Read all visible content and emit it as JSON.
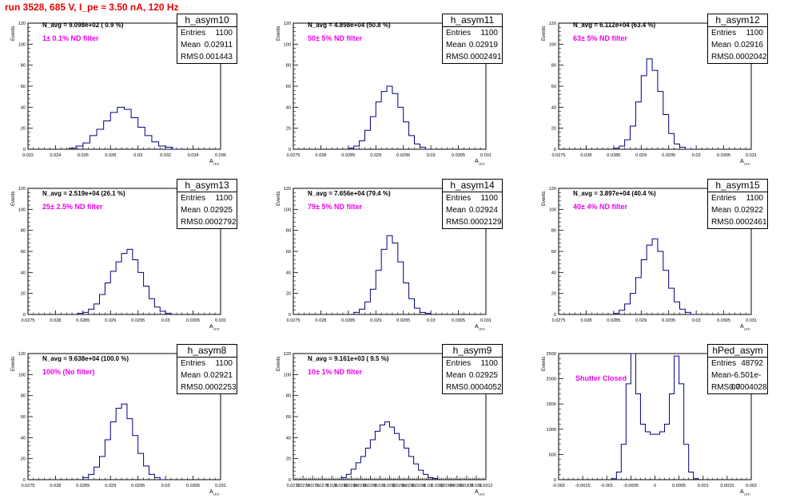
{
  "header": {
    "run_title": "run 3528,   685 V, I_pe ≈ 3.50 nA, 120 Hz"
  },
  "chart_data": [
    {
      "type": "histogram",
      "name": "h_asym10",
      "stats": {
        "entries": "1100",
        "mean": "0.02911",
        "rms": "0.001443"
      },
      "n_avg_label": "N_avg = 9.098e+02 ( 0.9 %)",
      "filter_label": "1± 0.1% ND filter",
      "xlim": [
        0.022,
        0.036
      ],
      "ylim": [
        0,
        120
      ],
      "xticks": [
        0.022,
        0.024,
        0.026,
        0.028,
        0.03,
        0.032,
        0.034,
        0.036
      ],
      "xtick_labels": [
        "0.022",
        "0.024",
        "0.026",
        "0.028",
        "0.03",
        "0.032",
        "0.034",
        "0.036"
      ],
      "yticks": [
        0,
        20,
        40,
        60,
        80,
        100,
        120
      ],
      "ylabel": "Events",
      "xlabel": "A",
      "xlabel_sub": "LED",
      "bins": {
        "edges": [
          0.025,
          0.0255,
          0.026,
          0.0265,
          0.027,
          0.0275,
          0.028,
          0.0285,
          0.029,
          0.0295,
          0.03,
          0.0305,
          0.031,
          0.0315,
          0.032,
          0.0325,
          0.033
        ],
        "counts": [
          1,
          3,
          6,
          13,
          19,
          27,
          35,
          40,
          38,
          30,
          21,
          13,
          7,
          3,
          2,
          0
        ]
      }
    },
    {
      "type": "histogram",
      "name": "h_asym11",
      "stats": {
        "entries": "1100",
        "mean": "0.02919",
        "rms": "0.0002491"
      },
      "n_avg_label": "N_avg = 4.898e+04 (50.8 %)",
      "filter_label": "50± 5% ND filter",
      "xlim": [
        0.0275,
        0.031
      ],
      "ylim": [
        0,
        120
      ],
      "xticks": [
        0.0275,
        0.028,
        0.0285,
        0.029,
        0.0295,
        0.03,
        0.0305,
        0.031
      ],
      "xtick_labels": [
        "0.0275",
        "0.028",
        "0.0285",
        "0.029",
        "0.0295",
        "0.03",
        "0.0305",
        "0.031"
      ],
      "yticks": [
        0,
        20,
        40,
        60,
        80,
        100,
        120
      ],
      "ylabel": "Events",
      "xlabel": "A",
      "xlabel_sub": "LED",
      "bins": {
        "edges": [
          0.0285,
          0.0286,
          0.0287,
          0.0288,
          0.0289,
          0.029,
          0.0291,
          0.0292,
          0.0293,
          0.0294,
          0.0295,
          0.0296,
          0.0297,
          0.0298,
          0.0299,
          0.03
        ],
        "counts": [
          1,
          3,
          8,
          18,
          31,
          45,
          55,
          60,
          53,
          40,
          26,
          13,
          5,
          2,
          0
        ]
      }
    },
    {
      "type": "histogram",
      "name": "h_asym12",
      "stats": {
        "entries": "1100",
        "mean": "0.02916",
        "rms": "0.0002042"
      },
      "n_avg_label": "N_avg = 6.112e+04 (63.4 %)",
      "filter_label": "63± 5% ND filter",
      "xlim": [
        0.0275,
        0.031
      ],
      "ylim": [
        0,
        120
      ],
      "xticks": [
        0.0275,
        0.028,
        0.0285,
        0.029,
        0.0295,
        0.03,
        0.0305,
        0.031
      ],
      "xtick_labels": [
        "0.0275",
        "0.028",
        "0.0285",
        "0.029",
        "0.0295",
        "0.03",
        "0.0305",
        "0.031"
      ],
      "yticks": [
        0,
        20,
        40,
        60,
        80,
        100,
        120
      ],
      "ylabel": "Events",
      "xlabel": "A",
      "xlabel_sub": "LED",
      "bins": {
        "edges": [
          0.0285,
          0.0286,
          0.0287,
          0.0288,
          0.0289,
          0.029,
          0.0291,
          0.0292,
          0.0293,
          0.0294,
          0.0295,
          0.0296,
          0.0297,
          0.0298,
          0.0299
        ],
        "counts": [
          1,
          3,
          9,
          22,
          45,
          70,
          86,
          75,
          55,
          33,
          15,
          5,
          2,
          0
        ]
      }
    },
    {
      "type": "histogram",
      "name": "h_asym13",
      "stats": {
        "entries": "1100",
        "mean": "0.02925",
        "rms": "0.0002792"
      },
      "n_avg_label": "N_avg = 2.519e+04 (26.1 %)",
      "filter_label": "25± 2.5% ND filter",
      "xlim": [
        0.0275,
        0.031
      ],
      "ylim": [
        0,
        120
      ],
      "xticks": [
        0.0275,
        0.028,
        0.0285,
        0.029,
        0.0295,
        0.03,
        0.0305,
        0.031
      ],
      "xtick_labels": [
        "0.0275",
        "0.028",
        "0.0285",
        "0.029",
        "0.0295",
        "0.03",
        "0.0305",
        "0.031"
      ],
      "yticks": [
        0,
        20,
        40,
        60,
        80,
        100,
        120
      ],
      "ylabel": "Events",
      "xlabel": "A",
      "xlabel_sub": "LED",
      "bins": {
        "edges": [
          0.0284,
          0.0285,
          0.0286,
          0.0287,
          0.0288,
          0.0289,
          0.029,
          0.0291,
          0.0292,
          0.0293,
          0.0294,
          0.0295,
          0.0296,
          0.0297,
          0.0298,
          0.0299,
          0.03,
          0.0301
        ],
        "counts": [
          1,
          2,
          5,
          10,
          19,
          30,
          41,
          50,
          58,
          62,
          52,
          40,
          27,
          15,
          7,
          3,
          1
        ]
      }
    },
    {
      "type": "histogram",
      "name": "h_asym14",
      "stats": {
        "entries": "1100",
        "mean": "0.02924",
        "rms": "0.0002129"
      },
      "n_avg_label": "N_avg = 7.656e+04 (79.4 %)",
      "filter_label": "79± 5% ND filter",
      "xlim": [
        0.0275,
        0.031
      ],
      "ylim": [
        0,
        120
      ],
      "xticks": [
        0.0275,
        0.028,
        0.0285,
        0.029,
        0.0295,
        0.03,
        0.0305,
        0.031
      ],
      "xtick_labels": [
        "0.0275",
        "0.028",
        "0.0285",
        "0.029",
        "0.0295",
        "0.03",
        "0.0305",
        "0.031"
      ],
      "yticks": [
        0,
        20,
        40,
        60,
        80,
        100,
        120
      ],
      "ylabel": "Events",
      "xlabel": "A",
      "xlabel_sub": "LED",
      "bins": {
        "edges": [
          0.0286,
          0.0287,
          0.0288,
          0.0289,
          0.029,
          0.0291,
          0.0292,
          0.0293,
          0.0294,
          0.0295,
          0.0296,
          0.0297,
          0.0298,
          0.0299,
          0.03
        ],
        "counts": [
          2,
          5,
          12,
          24,
          42,
          62,
          75,
          68,
          50,
          30,
          15,
          6,
          2,
          1
        ]
      }
    },
    {
      "type": "histogram",
      "name": "h_asym15",
      "stats": {
        "entries": "1100",
        "mean": "0.02922",
        "rms": "0.0002461"
      },
      "n_avg_label": "N_avg = 3.897e+04 (40.4 %)",
      "filter_label": "40± 4% ND filter",
      "xlim": [
        0.0275,
        0.031
      ],
      "ylim": [
        0,
        120
      ],
      "xticks": [
        0.0275,
        0.028,
        0.0285,
        0.029,
        0.0295,
        0.03,
        0.0305,
        0.031
      ],
      "xtick_labels": [
        "0.0275",
        "0.028",
        "0.0285",
        "0.029",
        "0.0295",
        "0.03",
        "0.0305",
        "0.031"
      ],
      "yticks": [
        0,
        20,
        40,
        60,
        80,
        100,
        120
      ],
      "ylabel": "Events",
      "xlabel": "A",
      "xlabel_sub": "LED",
      "bins": {
        "edges": [
          0.0285,
          0.0286,
          0.0287,
          0.0288,
          0.0289,
          0.029,
          0.0291,
          0.0292,
          0.0293,
          0.0294,
          0.0295,
          0.0296,
          0.0297,
          0.0298,
          0.0299,
          0.03
        ],
        "counts": [
          1,
          4,
          10,
          20,
          35,
          52,
          66,
          72,
          60,
          42,
          25,
          12,
          5,
          2,
          0
        ]
      }
    },
    {
      "type": "histogram",
      "name": "h_asym8",
      "stats": {
        "entries": "1100",
        "mean": "0.02921",
        "rms": "0.0002253"
      },
      "n_avg_label": "N_avg = 9.638e+04 (100.0 %)",
      "filter_label": "100% (No filter)",
      "xlim": [
        0.0275,
        0.031
      ],
      "ylim": [
        0,
        120
      ],
      "xticks": [
        0.0275,
        0.028,
        0.0285,
        0.029,
        0.0295,
        0.03,
        0.0305,
        0.031
      ],
      "xtick_labels": [
        "0.0275",
        "0.028",
        "0.0285",
        "0.029",
        "0.0295",
        "0.03",
        "0.0305",
        "0.031"
      ],
      "yticks": [
        0,
        20,
        40,
        60,
        80,
        100,
        120
      ],
      "ylabel": "Events",
      "xlabel": "A",
      "xlabel_sub": "LED",
      "bins": {
        "edges": [
          0.0285,
          0.0286,
          0.0287,
          0.0288,
          0.0289,
          0.029,
          0.0291,
          0.0292,
          0.0293,
          0.0294,
          0.0295,
          0.0296,
          0.0297,
          0.0298,
          0.0299,
          0.03
        ],
        "counts": [
          2,
          5,
          12,
          22,
          38,
          55,
          68,
          72,
          58,
          42,
          25,
          13,
          5,
          2,
          0
        ]
      }
    },
    {
      "type": "histogram",
      "name": "h_asym9",
      "stats": {
        "entries": "1100",
        "mean": "0.02925",
        "rms": "0.0004052"
      },
      "n_avg_label": "N_avg = 9.161e+03 ( 9.5 %)",
      "filter_label": "10± 1% ND filter",
      "xlim": [
        0.0272,
        0.0312
      ],
      "ylim": [
        0,
        120
      ],
      "xticks": [
        0.0272,
        0.0274,
        0.0276,
        0.0278,
        0.028,
        0.0282,
        0.0284,
        0.0286,
        0.0288,
        0.029,
        0.0292,
        0.0294,
        0.0296,
        0.0298,
        0.03,
        0.0302,
        0.0304,
        0.0306,
        0.0308,
        0.031,
        0.0312
      ],
      "xtick_labels": [
        "0.0272",
        "0.0274",
        "0.0276",
        "0.0278",
        "0.028",
        "0.0282",
        "0.0284",
        "0.0286",
        "0.0288",
        "0.029",
        "0.0292",
        "0.0294",
        "0.0296",
        "0.0298",
        "0.03",
        "0.0302",
        "0.0304",
        "0.0306",
        "0.0308",
        "0.031",
        "0.0312"
      ],
      "yticks": [
        0,
        20,
        40,
        60,
        80,
        100,
        120
      ],
      "ylabel": "Events",
      "xlabel": "A",
      "xlabel_sub": "LED",
      "bins": {
        "edges": [
          0.0282,
          0.0283,
          0.0284,
          0.0285,
          0.0286,
          0.0287,
          0.0288,
          0.0289,
          0.029,
          0.0291,
          0.0292,
          0.0293,
          0.0294,
          0.0295,
          0.0296,
          0.0297,
          0.0298,
          0.0299,
          0.03,
          0.0301,
          0.0302
        ],
        "counts": [
          2,
          5,
          10,
          16,
          22,
          30,
          38,
          46,
          52,
          55,
          50,
          44,
          38,
          30,
          22,
          15,
          9,
          5,
          2,
          1
        ]
      }
    },
    {
      "type": "histogram",
      "name": "hPed_asym",
      "stats": {
        "entries": "48792",
        "mean": "-6.501e-07",
        "rms": "0.0004028"
      },
      "annotation": "Shutter Closed",
      "xlim": [
        -0.002,
        0.002
      ],
      "ylim": [
        0,
        2500
      ],
      "xticks": [
        -0.002,
        -0.0015,
        -0.001,
        -0.0005,
        0,
        0.0005,
        0.001,
        0.0015,
        0.002
      ],
      "xtick_labels": [
        "-0.002",
        "-0.0015",
        "-0.001",
        "-0.0005",
        "0",
        "0.0005",
        "0.001",
        "0.0015",
        "0.002"
      ],
      "yticks": [
        0,
        500,
        1000,
        1500,
        2000,
        2500
      ],
      "ylabel": "Events",
      "xlabel": "A",
      "xlabel_sub": "LED",
      "bins": {
        "edges": [
          -0.0009,
          -0.0008,
          -0.0007,
          -0.0006,
          -0.0005,
          -0.0004,
          -0.0003,
          -0.0002,
          -0.0001,
          0.0,
          0.0001,
          0.0002,
          0.0003,
          0.0004,
          0.0005,
          0.0006,
          0.0007,
          0.0008,
          0.0009
        ],
        "counts": [
          20,
          150,
          700,
          1900,
          2500,
          1700,
          1100,
          950,
          900,
          900,
          950,
          1100,
          1700,
          2450,
          1900,
          700,
          150,
          20
        ]
      }
    }
  ]
}
